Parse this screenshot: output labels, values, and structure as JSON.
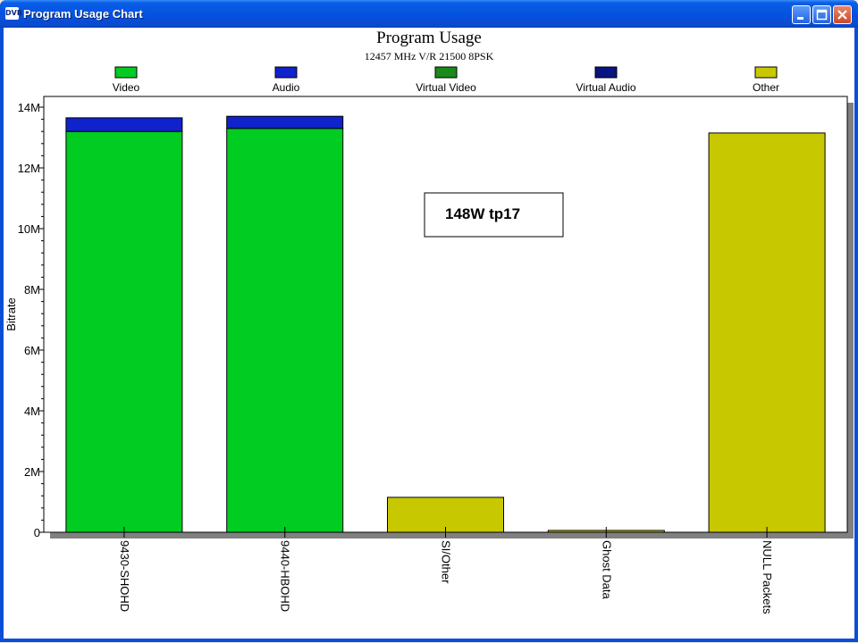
{
  "window": {
    "title": "Program Usage Chart",
    "icon_text": "DVB",
    "buttons": [
      "minimize-icon",
      "maximize-icon",
      "close-icon"
    ]
  },
  "chart_data": {
    "type": "bar",
    "stacked": true,
    "title": "Program Usage",
    "subtitle": "12457 MHz V/R 21500 8PSK",
    "ylabel": "Bitrate",
    "xlabel": "",
    "ylim": [
      0,
      14
    ],
    "yticks": [
      0,
      2,
      4,
      6,
      8,
      10,
      12,
      14
    ],
    "ytick_labels": [
      "0",
      "2M",
      "4M",
      "6M",
      "8M",
      "10M",
      "12M",
      "14M"
    ],
    "unit": "M",
    "grid": false,
    "legend_placement": "top",
    "categories": [
      "9430-SHOHD",
      "9440-HBOHD",
      "SI/Other",
      "Ghost Data",
      "NULL Packets"
    ],
    "series": [
      {
        "name": "Video",
        "color": "#00cc22",
        "values": [
          13.2,
          13.3,
          0,
          0,
          0
        ]
      },
      {
        "name": "Audio",
        "color": "#1022cc",
        "values": [
          0.45,
          0.4,
          0,
          0,
          0
        ]
      },
      {
        "name": "Virtual Video",
        "color": "#1a8a1a",
        "values": [
          0,
          0,
          0,
          0,
          0
        ]
      },
      {
        "name": "Virtual Audio",
        "color": "#0a1480",
        "values": [
          0,
          0,
          0,
          0,
          0
        ]
      },
      {
        "name": "Other",
        "color": "#c8c800",
        "values": [
          0,
          0,
          1.15,
          0.06,
          13.15
        ]
      }
    ],
    "annotation": "148W tp17"
  }
}
